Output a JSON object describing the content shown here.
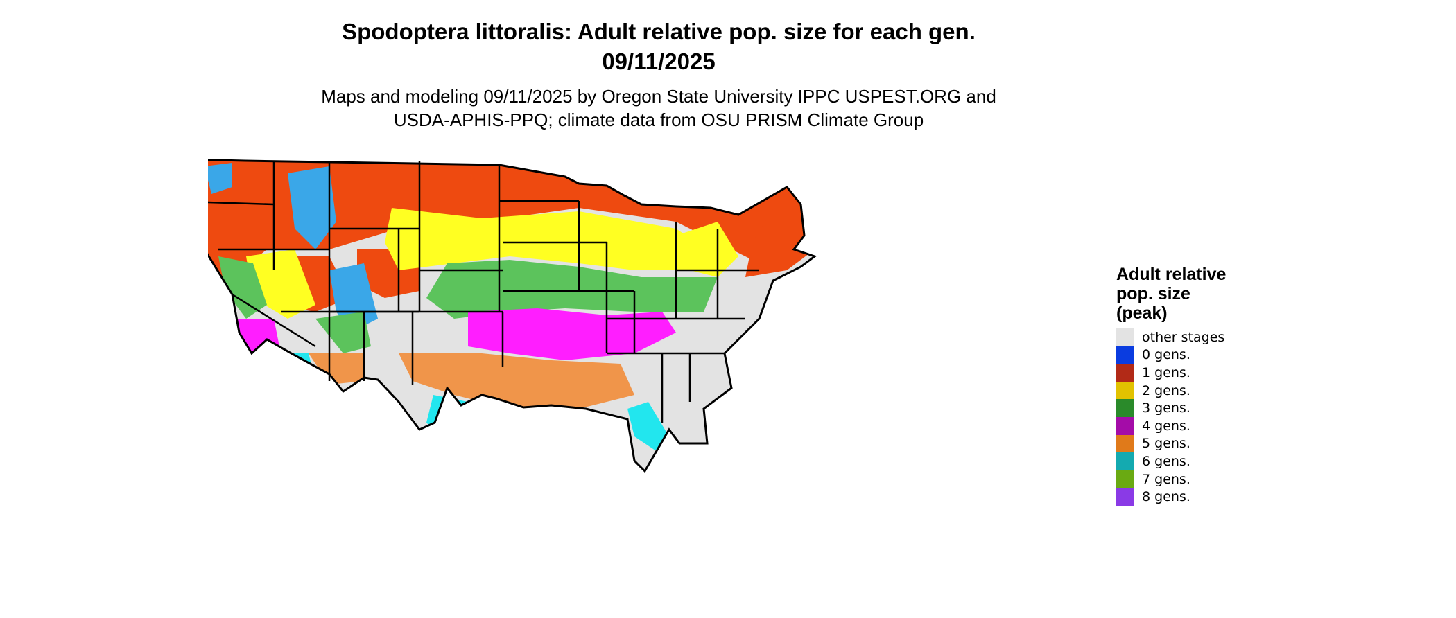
{
  "title_line1": "Spodoptera littoralis: Adult relative pop. size for each gen.",
  "title_line2": "09/11/2025",
  "subtitle_line1": "Maps and modeling 09/11/2025 by Oregon State University IPPC USPEST.ORG and",
  "subtitle_line2": "USDA-APHIS-PPQ; climate data from OSU PRISM Climate Group",
  "legend": {
    "title_lines": [
      "Adult relative",
      "pop. size",
      "(peak)"
    ],
    "items": [
      {
        "label": "other stages",
        "color": "#e3e3e3"
      },
      {
        "label": "0 gens.",
        "color": "#0a3ce0"
      },
      {
        "label": "1 gens.",
        "color": "#b22a17"
      },
      {
        "label": "2 gens.",
        "color": "#e2c200"
      },
      {
        "label": "3 gens.",
        "color": "#2a8a2a"
      },
      {
        "label": "4 gens.",
        "color": "#a40ca8"
      },
      {
        "label": "5 gens.",
        "color": "#e07a1a"
      },
      {
        "label": "6 gens.",
        "color": "#14aab0"
      },
      {
        "label": "7 gens.",
        "color": "#6aaa12"
      },
      {
        "label": "8 gens.",
        "color": "#8a3ae6"
      }
    ]
  },
  "map_colors": {
    "base": "#e3e3e3",
    "gen1": "#ee4a10",
    "gen2": "#ffff22",
    "gen3": "#5cc35c",
    "gen4": "#ff1eff",
    "gen5": "#f0954a",
    "gen6": "#22e6ee",
    "gen0_like": "#3aa7e8",
    "borders": "#000000"
  }
}
